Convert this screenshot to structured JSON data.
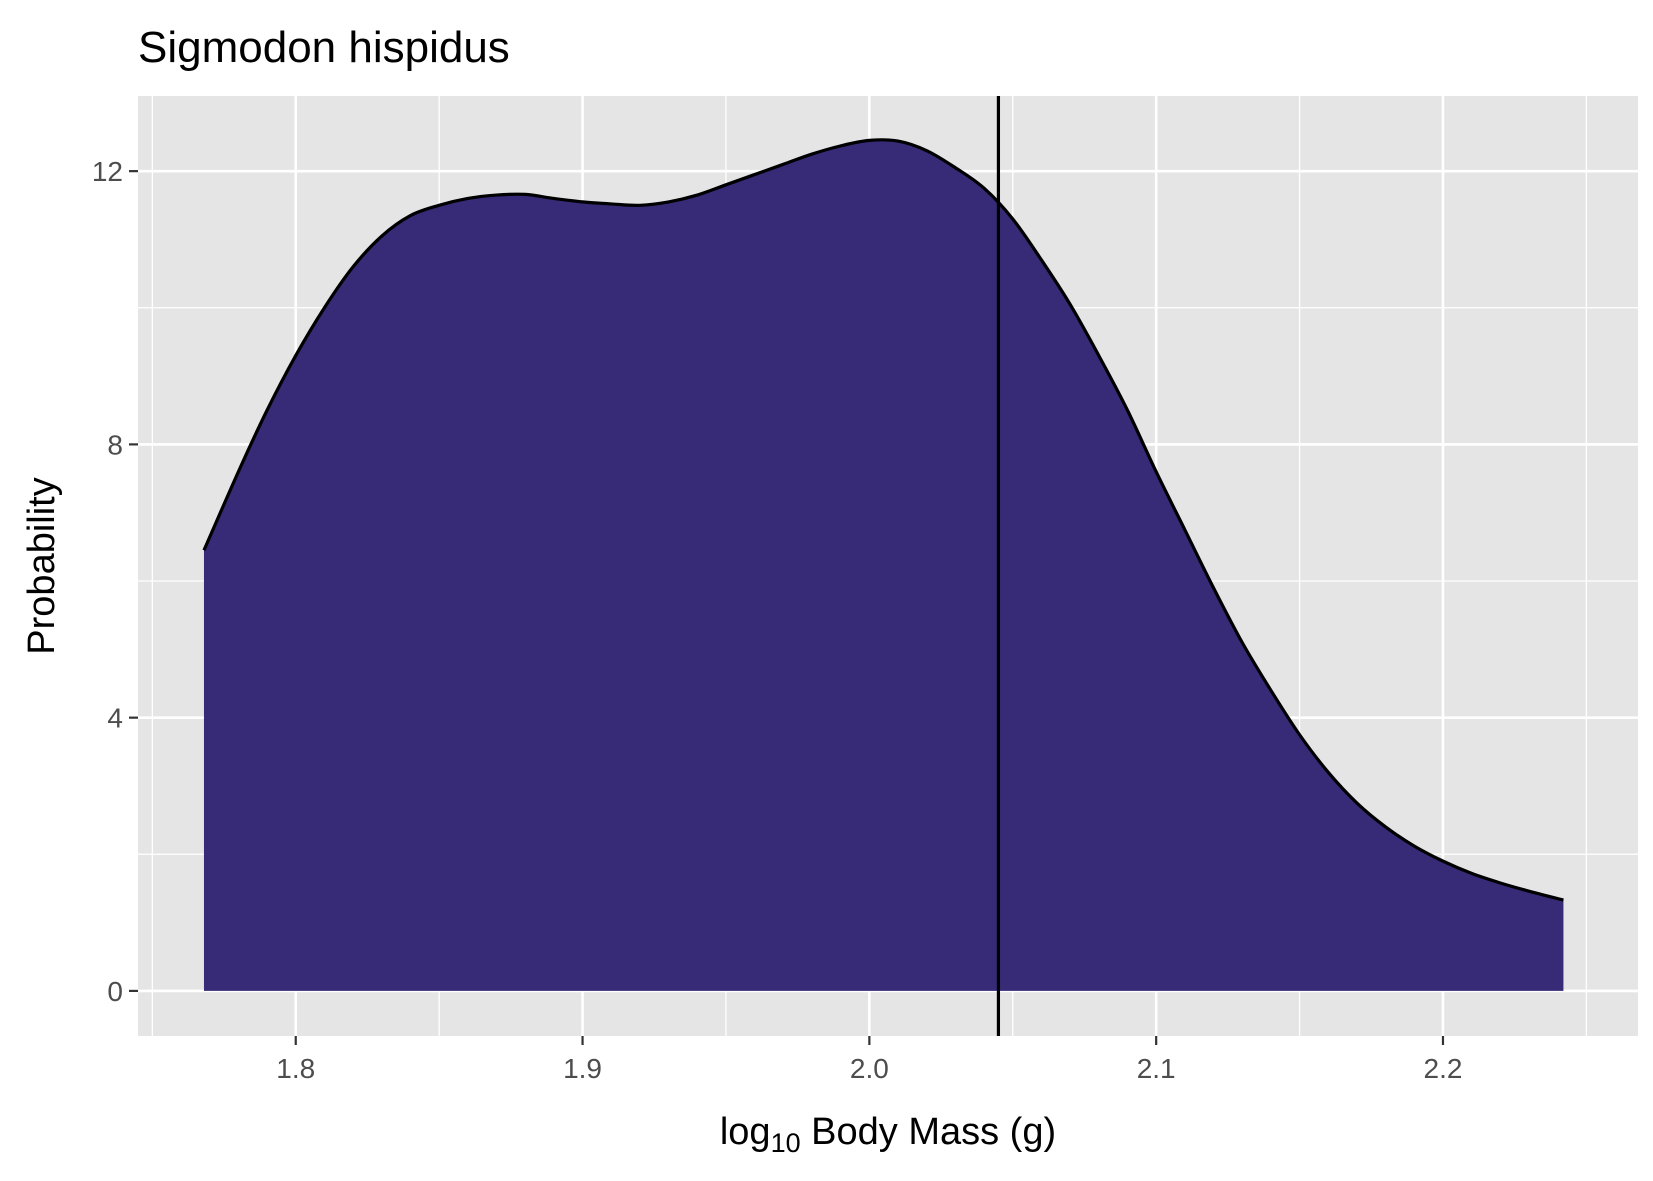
{
  "chart_data": {
    "type": "area",
    "title": "Sigmodon hispidus",
    "xlabel_base": "log",
    "xlabel_sub": "10",
    "xlabel_rest": " Body Mass (g)",
    "ylabel": "Probability",
    "xlim": [
      1.745,
      2.268
    ],
    "ylim": [
      -0.66,
      13.1
    ],
    "x_ticks": [
      1.8,
      1.9,
      2.0,
      2.1,
      2.2
    ],
    "x_tick_labels": [
      "1.8",
      "1.9",
      "2.0",
      "2.1",
      "2.2"
    ],
    "x_minor_ticks": [
      1.75,
      1.85,
      1.95,
      2.05,
      2.15,
      2.25
    ],
    "y_ticks": [
      0,
      4,
      8,
      12
    ],
    "y_tick_labels": [
      "0",
      "4",
      "8",
      "12"
    ],
    "y_minor_ticks": [
      2,
      6,
      10
    ],
    "grid": true,
    "vline_x": 2.045,
    "colors": {
      "fill": "#372a77",
      "outline": "#000000",
      "panel": "#e5e5e5",
      "grid": "#ffffff"
    },
    "density": {
      "x": [
        1.768,
        1.78,
        1.79,
        1.8,
        1.81,
        1.82,
        1.83,
        1.84,
        1.85,
        1.86,
        1.87,
        1.88,
        1.89,
        1.9,
        1.91,
        1.92,
        1.93,
        1.94,
        1.95,
        1.96,
        1.97,
        1.98,
        1.99,
        2.0,
        2.01,
        2.02,
        2.03,
        2.04,
        2.05,
        2.06,
        2.07,
        2.08,
        2.09,
        2.1,
        2.11,
        2.12,
        2.13,
        2.14,
        2.15,
        2.16,
        2.17,
        2.18,
        2.19,
        2.2,
        2.21,
        2.22,
        2.23,
        2.242
      ],
      "y": [
        6.45,
        7.6,
        8.5,
        9.3,
        10.0,
        10.6,
        11.05,
        11.35,
        11.5,
        11.6,
        11.65,
        11.66,
        11.6,
        11.55,
        11.52,
        11.5,
        11.55,
        11.65,
        11.8,
        11.95,
        12.1,
        12.25,
        12.37,
        12.45,
        12.44,
        12.3,
        12.05,
        11.75,
        11.3,
        10.7,
        10.05,
        9.3,
        8.5,
        7.6,
        6.75,
        5.9,
        5.1,
        4.4,
        3.75,
        3.2,
        2.75,
        2.4,
        2.12,
        1.9,
        1.72,
        1.58,
        1.46,
        1.33
      ]
    }
  }
}
